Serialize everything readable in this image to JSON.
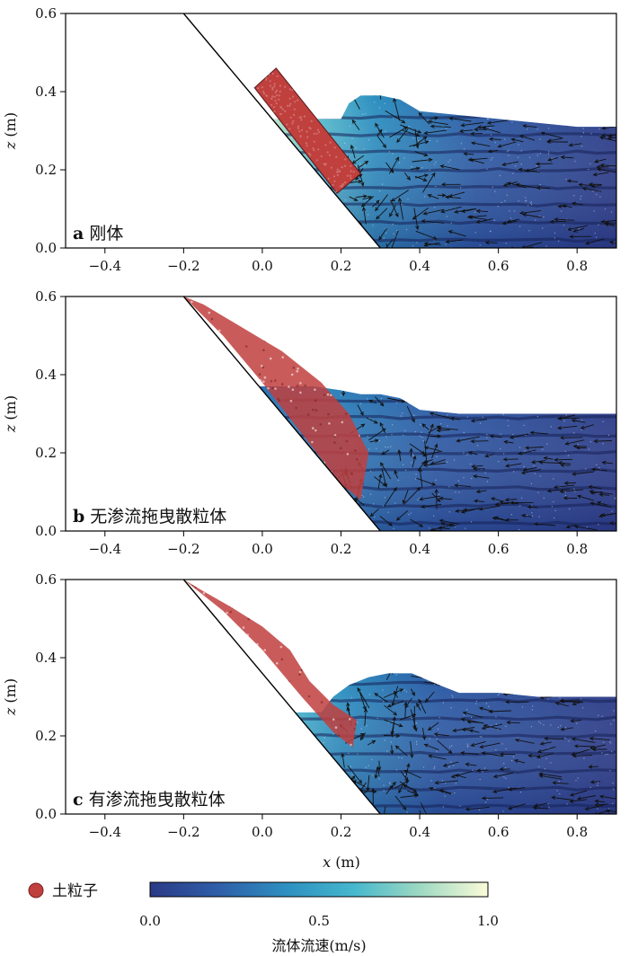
{
  "chart_data": {
    "type": "scatter",
    "x_axis": {
      "label_var": "x",
      "label_unit": " (m)",
      "range": [
        -0.5,
        0.9
      ],
      "ticks": [
        "−0.4",
        "−0.2",
        "0.0",
        "0.2",
        "0.4",
        "0.6",
        "0.8"
      ],
      "tick_values": [
        -0.4,
        -0.2,
        0.0,
        0.2,
        0.4,
        0.6,
        0.8
      ]
    },
    "y_axis": {
      "label_var": "z",
      "label_unit": " (m)",
      "range": [
        0.0,
        0.6
      ],
      "ticks": [
        "0.0",
        "0.2",
        "0.4",
        "0.6"
      ],
      "tick_values": [
        0.0,
        0.2,
        0.4,
        0.6
      ]
    },
    "slope_line": {
      "x": [
        -0.2,
        0.3
      ],
      "z": [
        0.6,
        0.0
      ]
    },
    "panels": [
      {
        "letter": "a",
        "title": "刚体",
        "block_type": "rigid",
        "block_corners": {
          "x": [
            -0.02,
            0.035,
            0.25,
            0.19
          ],
          "z": [
            0.41,
            0.46,
            0.19,
            0.14
          ]
        },
        "water_surface": {
          "x": [
            0.2,
            0.22,
            0.25,
            0.3,
            0.35,
            0.4,
            0.5,
            0.6,
            0.7,
            0.8,
            0.9
          ],
          "z": [
            0.33,
            0.37,
            0.39,
            0.39,
            0.38,
            0.35,
            0.34,
            0.33,
            0.32,
            0.31,
            0.31
          ]
        }
      },
      {
        "letter": "b",
        "title": "无渗流拖曳散粒体",
        "block_type": "granular",
        "granular_outline": {
          "x": [
            -0.2,
            -0.15,
            -0.05,
            0.05,
            0.15,
            0.22,
            0.27,
            0.25,
            0.2,
            0.1,
            0.0,
            -0.1
          ],
          "z": [
            0.6,
            0.58,
            0.52,
            0.46,
            0.38,
            0.3,
            0.2,
            0.08,
            0.12,
            0.25,
            0.38,
            0.5
          ]
        },
        "water_surface": {
          "x": [
            0.13,
            0.2,
            0.25,
            0.3,
            0.35,
            0.4,
            0.5,
            0.6,
            0.7,
            0.8,
            0.9
          ],
          "z": [
            0.37,
            0.36,
            0.35,
            0.35,
            0.34,
            0.31,
            0.3,
            0.3,
            0.3,
            0.3,
            0.3
          ]
        }
      },
      {
        "letter": "c",
        "title": "有渗流拖曳散粒体",
        "block_type": "granular",
        "granular_outline": {
          "x": [
            -0.2,
            -0.15,
            -0.08,
            0.0,
            0.07,
            0.12,
            0.18,
            0.24,
            0.23,
            0.18,
            0.1,
            0.0,
            -0.1
          ],
          "z": [
            0.6,
            0.57,
            0.53,
            0.48,
            0.42,
            0.34,
            0.28,
            0.24,
            0.17,
            0.21,
            0.3,
            0.42,
            0.52
          ]
        },
        "water_surface": {
          "x": [
            0.15,
            0.18,
            0.22,
            0.27,
            0.32,
            0.38,
            0.45,
            0.5,
            0.6,
            0.7,
            0.8,
            0.9
          ],
          "z": [
            0.26,
            0.3,
            0.33,
            0.35,
            0.36,
            0.36,
            0.33,
            0.31,
            0.31,
            0.3,
            0.3,
            0.3
          ]
        }
      }
    ],
    "colorbar": {
      "range": [
        0.0,
        1.0
      ],
      "ticks": [
        "0.0",
        "0.5",
        "1.0"
      ],
      "tick_values": [
        0.0,
        0.5,
        1.0
      ],
      "colors": [
        "#2b3a86",
        "#2f5ea8",
        "#2e8fc0",
        "#45b7cd",
        "#9ed9c2",
        "#fbfbd8"
      ],
      "label": "流体流速(m/s)"
    },
    "legend": {
      "label": "土粒子",
      "color": "#c0403e"
    }
  }
}
